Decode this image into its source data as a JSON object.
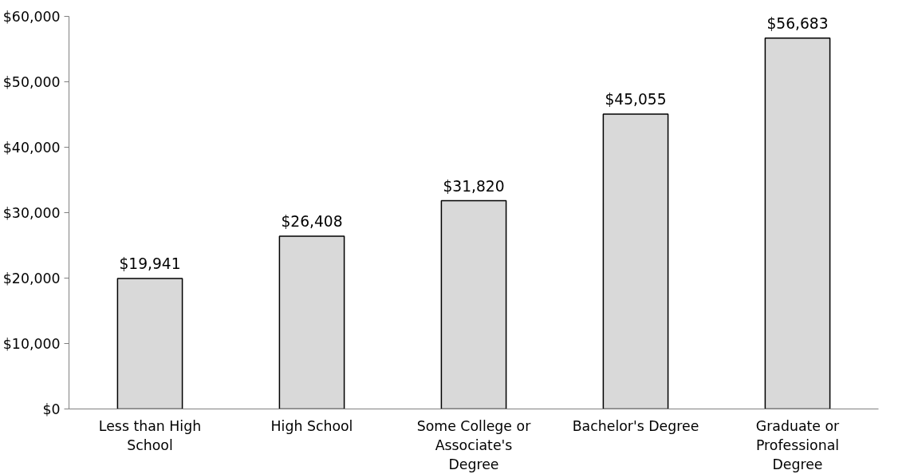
{
  "chart_data": {
    "type": "bar",
    "categories": [
      "Less than High School",
      "High School",
      "Some College or Associate's Degree",
      "Bachelor's Degree",
      "Graduate or Professional Degree"
    ],
    "values": [
      19941,
      26408,
      31820,
      45055,
      56683
    ],
    "value_labels": [
      "$19,941",
      "$26,408",
      "$31,820",
      "$45,055",
      "$56,683"
    ],
    "color": "#d9d9d9",
    "ylim": [
      0,
      60000
    ],
    "yticks": [
      {
        "value": 0,
        "label": "$0"
      },
      {
        "value": 10000,
        "label": "$10,000"
      },
      {
        "value": 20000,
        "label": "$20,000"
      },
      {
        "value": 30000,
        "label": "$30,000"
      },
      {
        "value": 40000,
        "label": "$40,000"
      },
      {
        "value": 50000,
        "label": "$50,000"
      },
      {
        "value": 60000,
        "label": "$60,000"
      }
    ],
    "grid": false
  }
}
